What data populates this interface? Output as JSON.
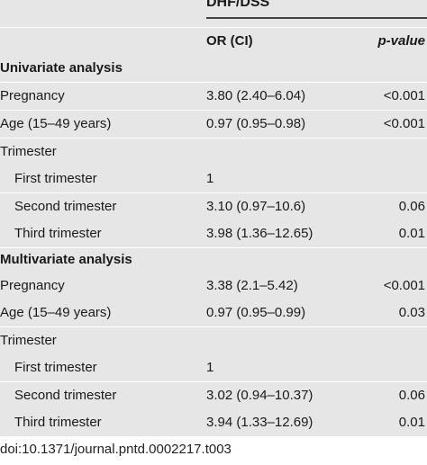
{
  "table": {
    "group_header": "DHF/DSS",
    "col_or": "OR (CI)",
    "col_p": "p-value",
    "sections": [
      {
        "title": "Univariate analysis",
        "rows": [
          {
            "label": "Pregnancy",
            "or": "3.80 (2.40–6.04)",
            "p": "<0.001",
            "indent": false
          },
          {
            "label": "Age (15–49 years)",
            "or": "0.97 (0.95–0.98)",
            "p": "<0.001",
            "indent": false
          },
          {
            "label": "Trimester",
            "or": "",
            "p": "",
            "indent": false
          },
          {
            "label": "First trimester",
            "or": "1",
            "p": "",
            "indent": true
          },
          {
            "label": "Second trimester",
            "or": "3.10 (0.97–10.6)",
            "p": "0.06",
            "indent": true
          },
          {
            "label": "Third trimester",
            "or": "3.98 (1.36–12.65)",
            "p": "0.01",
            "indent": true
          }
        ]
      },
      {
        "title": "Multivariate analysis",
        "rows": [
          {
            "label": "Pregnancy",
            "or": "3.38 (2.1–5.42)",
            "p": "<0.001",
            "indent": false
          },
          {
            "label": "Age (15–49 years)",
            "or": "0.97 (0.95–0.99)",
            "p": "0.03",
            "indent": false
          },
          {
            "label": "Trimester",
            "or": "",
            "p": "",
            "indent": false
          },
          {
            "label": "First trimester",
            "or": "1",
            "p": "",
            "indent": true
          },
          {
            "label": "Second trimester",
            "or": "3.02 (0.94–10.37)",
            "p": "0.06",
            "indent": true
          },
          {
            "label": "Third trimester",
            "or": "3.94 (1.33–12.69)",
            "p": "0.01",
            "indent": true
          }
        ]
      }
    ]
  },
  "footer": {
    "doi": "doi:10.1371/journal.pntd.0002217.t003"
  }
}
